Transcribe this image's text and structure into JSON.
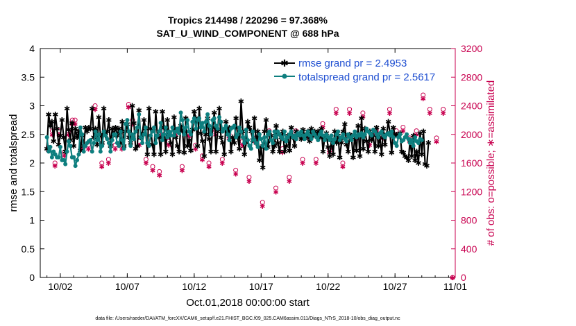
{
  "chart_data": {
    "type": "line",
    "title": "Tropics 214498 / 220296 = 97.368%",
    "subtitle": "SAT_U_WIND_COMPONENT @ 688 hPa",
    "xlabel": "Oct.01,2018 00:00:00 start",
    "ylabel": "rmse and totalspread",
    "y2label": "# of obs: o=possible; ∗=assimilated",
    "xlim": [
      0.5,
      31.5
    ],
    "ylim": [
      0,
      4
    ],
    "y2lim": [
      0,
      3200
    ],
    "x_ticks": [
      {
        "v": 2,
        "label": "10/02"
      },
      {
        "v": 7,
        "label": "10/07"
      },
      {
        "v": 12,
        "label": "10/12"
      },
      {
        "v": 17,
        "label": "10/17"
      },
      {
        "v": 22,
        "label": "10/22"
      },
      {
        "v": 27,
        "label": "10/27"
      },
      {
        "v": 32,
        "label": "11/01"
      }
    ],
    "y_ticks": [
      "0",
      "0.5",
      "1",
      "1.5",
      "2",
      "2.5",
      "3",
      "3.5",
      "4"
    ],
    "y2_ticks": [
      "0",
      "400",
      "800",
      "1200",
      "1600",
      "2000",
      "2400",
      "2800",
      "3200"
    ],
    "legend_position": "top-right",
    "series": [
      {
        "name": "rmse grand pr = 2.4953",
        "color": "#000000",
        "marker": "asterisk",
        "axis": "left",
        "values": [
          2.25,
          2.85,
          2.65,
          2.72,
          2.38,
          2.85,
          2.6,
          2.32,
          2.48,
          2.75,
          2.45,
          2.2,
          2.95,
          2.58,
          2.4,
          2.7,
          2.3,
          2.6,
          2.45,
          2.55,
          2.22,
          2.48,
          2.3,
          2.62,
          2.55,
          2.62,
          2.6,
          2.95,
          2.45,
          2.6,
          2.32,
          2.8,
          2.5,
          2.35,
          2.95,
          2.48,
          2.55,
          2.75,
          2.3,
          2.6,
          2.5,
          2.62,
          2.48,
          2.6,
          2.35,
          2.72,
          2.3,
          2.55,
          2.68,
          2.45,
          2.35,
          3.0,
          2.7,
          2.25,
          2.3,
          2.92,
          2.45,
          2.52,
          2.75,
          2.6,
          2.15,
          2.95,
          2.6,
          2.32,
          2.15,
          2.9,
          2.48,
          2.45,
          2.15,
          2.9,
          2.62,
          2.2,
          2.75,
          2.5,
          2.35,
          2.15,
          2.8,
          2.45,
          2.3,
          2.2,
          2.65,
          2.55,
          2.18,
          2.78,
          2.3,
          2.4,
          2.22,
          2.58,
          2.9,
          2.78,
          2.3,
          2.95,
          2.52,
          2.38,
          2.12,
          2.5,
          2.78,
          2.42,
          2.2,
          2.62,
          2.88,
          2.2,
          2.55,
          2.95,
          2.45,
          2.35,
          2.15,
          2.72,
          2.55,
          2.62,
          2.2,
          2.45,
          2.35,
          2.78,
          2.45,
          2.25,
          3.08,
          2.55,
          2.15,
          2.35,
          2.72,
          2.62,
          2.55,
          2.4,
          2.78,
          2.35,
          2.55,
          2.05,
          2.28,
          1.92,
          2.55,
          2.75,
          2.28,
          2.4,
          2.48,
          2.2,
          2.3,
          2.65,
          2.35,
          2.2,
          2.45,
          2.55,
          2.2,
          2.3,
          2.48,
          2.22,
          2.62,
          2.45,
          2.3,
          2.55,
          2.5,
          2.48,
          2.42,
          2.58,
          2.48,
          2.45,
          2.55,
          2.38,
          2.6,
          2.48,
          2.55,
          2.48,
          2.55,
          2.45,
          2.6,
          2.2,
          2.45,
          2.52,
          2.28,
          2.12,
          2.4,
          2.15,
          2.55,
          2.35,
          2.48,
          2.1,
          2.35,
          2.55,
          2.68,
          2.32,
          2.2,
          2.5,
          2.45,
          2.1,
          2.48,
          2.22,
          2.65,
          2.12,
          2.78,
          2.25,
          2.6,
          2.38,
          2.2,
          2.55,
          2.4,
          2.48,
          2.2,
          2.62,
          2.3,
          2.45,
          2.15,
          2.6,
          2.32,
          2.5,
          2.72,
          2.52,
          2.18,
          2.62,
          2.48,
          2.5,
          2.48,
          2.52,
          2.2,
          2.18,
          2.12,
          2.1,
          2.05,
          2.4,
          2.12,
          2.48,
          2.05,
          2.2,
          2.0,
          2.52,
          2.15,
          2.55,
          1.98,
          1.95,
          2.35
        ]
      },
      {
        "name": "totalspread grand pr = 2.5617",
        "color": "#0e7f7f",
        "marker": "circle",
        "axis": "left",
        "values": [
          2.45,
          2.2,
          2.28,
          2.1,
          2.2,
          2.15,
          2.1,
          2.1,
          2.28,
          2.05,
          2.05,
          1.98,
          2.2,
          2.38,
          2.3,
          2.1,
          2.1,
          1.95,
          2.05,
          2.15,
          2.62,
          2.5,
          2.2,
          2.3,
          2.35,
          2.38,
          2.4,
          2.2,
          2.35,
          2.55,
          2.4,
          2.5,
          2.2,
          2.3,
          2.55,
          2.48,
          2.42,
          2.35,
          2.2,
          2.4,
          2.5,
          2.5,
          2.35,
          2.3,
          2.55,
          2.4,
          2.25,
          2.68,
          2.75,
          2.55,
          2.3,
          2.5,
          2.42,
          2.55,
          2.62,
          2.85,
          2.45,
          2.35,
          2.5,
          2.62,
          2.35,
          2.3,
          2.48,
          2.55,
          2.62,
          2.35,
          2.48,
          2.55,
          2.7,
          2.4,
          2.5,
          2.62,
          2.45,
          2.55,
          2.48,
          2.62,
          2.48,
          2.55,
          2.6,
          2.52,
          2.88,
          2.75,
          2.5,
          2.62,
          2.75,
          2.55,
          2.5,
          2.72,
          2.78,
          2.6,
          2.75,
          2.78,
          2.62,
          2.7,
          2.55,
          2.72,
          2.85,
          2.65,
          2.5,
          2.75,
          2.78,
          2.65,
          2.6,
          2.8,
          2.72,
          2.55,
          2.6,
          2.65,
          2.5,
          2.4,
          2.6,
          2.62,
          2.65,
          2.45,
          2.5,
          2.62,
          2.55,
          2.45,
          2.35,
          2.58,
          2.4,
          2.3,
          2.25,
          2.55,
          2.4,
          2.35,
          2.28,
          2.5,
          2.42,
          2.3,
          2.45,
          2.25,
          2.5,
          2.55,
          2.4,
          2.35,
          2.55,
          2.45,
          2.55,
          2.5,
          2.45,
          2.42,
          2.55,
          2.38,
          2.45,
          2.5,
          2.55,
          2.45,
          2.48,
          2.42,
          2.52,
          2.48,
          2.55,
          2.48,
          2.42,
          2.5,
          2.55,
          2.48,
          2.42,
          2.55,
          2.5,
          2.45,
          2.4,
          2.5,
          2.55,
          2.48,
          2.4,
          2.5,
          2.45,
          2.4,
          2.48,
          2.35,
          2.42,
          2.5,
          2.55,
          2.4,
          2.45,
          2.5,
          2.42,
          2.38,
          2.5,
          2.45,
          2.4,
          2.48,
          2.55,
          2.45,
          2.5,
          2.48,
          2.52,
          2.45,
          2.5,
          2.6,
          2.55,
          2.52,
          2.48,
          2.58,
          2.55,
          2.5,
          2.45,
          2.52,
          2.55,
          2.48,
          2.45,
          2.5,
          2.52,
          2.48,
          2.55,
          2.45,
          2.35,
          2.3,
          2.45,
          2.5,
          2.38,
          2.4,
          2.45,
          2.5,
          2.42,
          2.35,
          2.4,
          2.3,
          2.45,
          2.38,
          2.35,
          2.42,
          2.4
        ]
      },
      {
        "name": "possible obs",
        "color": "#c8004f",
        "marker": "o",
        "axis": "right",
        "points": [
          [
            1.1,
            1820
          ],
          [
            1.4,
            2050
          ],
          [
            1.6,
            1600
          ],
          [
            1.9,
            2050
          ],
          [
            2.3,
            1750
          ],
          [
            2.6,
            2050
          ],
          [
            2.9,
            2200
          ],
          [
            3.1,
            2200
          ],
          [
            3.6,
            1850
          ],
          [
            4.1,
            1850
          ],
          [
            4.6,
            2400
          ],
          [
            5.1,
            1600
          ],
          [
            5.6,
            1650
          ],
          [
            6.1,
            1850
          ],
          [
            6.6,
            1850
          ],
          [
            7.1,
            2420
          ],
          [
            7.4,
            2200
          ],
          [
            7.9,
            1900
          ],
          [
            8.4,
            1650
          ],
          [
            8.9,
            1550
          ],
          [
            9.4,
            1480
          ],
          [
            9.6,
            2050
          ],
          [
            10.1,
            1900
          ],
          [
            10.6,
            2050
          ],
          [
            11.1,
            1550
          ],
          [
            11.6,
            2020
          ],
          [
            12.1,
            1850
          ],
          [
            12.6,
            1700
          ],
          [
            13.1,
            1600
          ],
          [
            13.6,
            2050
          ],
          [
            14.1,
            1650
          ],
          [
            14.6,
            2000
          ],
          [
            15.1,
            1500
          ],
          [
            15.6,
            1900
          ],
          [
            16.1,
            1400
          ],
          [
            16.6,
            1950
          ],
          [
            17.1,
            1050
          ],
          [
            17.6,
            2050
          ],
          [
            18.1,
            1250
          ],
          [
            18.6,
            1800
          ],
          [
            19.1,
            1400
          ],
          [
            19.6,
            2050
          ],
          [
            20.1,
            1650
          ],
          [
            20.6,
            2000
          ],
          [
            21.1,
            1650
          ],
          [
            21.6,
            2150
          ],
          [
            22.1,
            1800
          ],
          [
            22.6,
            2350
          ],
          [
            23.1,
            1600
          ],
          [
            23.6,
            2350
          ],
          [
            24.1,
            2000
          ],
          [
            24.6,
            2300
          ],
          [
            25.1,
            1900
          ],
          [
            25.6,
            2050
          ],
          [
            26.1,
            2000
          ],
          [
            26.6,
            2350
          ],
          [
            27.1,
            2050
          ],
          [
            27.6,
            2100
          ],
          [
            28.1,
            1950
          ],
          [
            28.6,
            2050
          ],
          [
            29.1,
            2550
          ],
          [
            29.6,
            2350
          ],
          [
            30.1,
            1950
          ],
          [
            30.6,
            2350
          ],
          [
            31.3,
            0
          ]
        ]
      },
      {
        "name": "assimilated obs",
        "color": "#c8004f",
        "marker": "asterisk",
        "axis": "right",
        "points": [
          [
            1.1,
            1780
          ],
          [
            1.4,
            2000
          ],
          [
            1.6,
            1560
          ],
          [
            1.9,
            2000
          ],
          [
            2.3,
            1700
          ],
          [
            2.6,
            2000
          ],
          [
            2.9,
            2150
          ],
          [
            3.1,
            2150
          ],
          [
            3.6,
            1800
          ],
          [
            4.1,
            1800
          ],
          [
            4.6,
            2350
          ],
          [
            5.1,
            1550
          ],
          [
            5.6,
            1600
          ],
          [
            6.1,
            1800
          ],
          [
            6.6,
            1800
          ],
          [
            7.1,
            2380
          ],
          [
            7.4,
            2150
          ],
          [
            7.9,
            1850
          ],
          [
            8.4,
            1600
          ],
          [
            8.9,
            1500
          ],
          [
            9.4,
            1430
          ],
          [
            9.6,
            2000
          ],
          [
            10.1,
            1850
          ],
          [
            10.6,
            2000
          ],
          [
            11.1,
            1500
          ],
          [
            11.6,
            1980
          ],
          [
            12.1,
            1800
          ],
          [
            12.6,
            1650
          ],
          [
            13.1,
            1550
          ],
          [
            13.6,
            2000
          ],
          [
            14.1,
            1600
          ],
          [
            14.6,
            1950
          ],
          [
            15.1,
            1450
          ],
          [
            15.6,
            1850
          ],
          [
            16.1,
            1350
          ],
          [
            16.6,
            1900
          ],
          [
            17.1,
            1000
          ],
          [
            17.6,
            2000
          ],
          [
            18.1,
            1200
          ],
          [
            18.6,
            1750
          ],
          [
            19.1,
            1350
          ],
          [
            19.6,
            2000
          ],
          [
            20.1,
            1600
          ],
          [
            20.6,
            1950
          ],
          [
            21.1,
            1600
          ],
          [
            21.6,
            2100
          ],
          [
            22.1,
            1750
          ],
          [
            22.6,
            2300
          ],
          [
            23.1,
            1550
          ],
          [
            23.6,
            2300
          ],
          [
            24.1,
            1950
          ],
          [
            24.6,
            2250
          ],
          [
            25.1,
            1850
          ],
          [
            25.6,
            2000
          ],
          [
            26.1,
            1950
          ],
          [
            26.6,
            2300
          ],
          [
            27.1,
            2000
          ],
          [
            27.6,
            2050
          ],
          [
            28.1,
            1900
          ],
          [
            28.6,
            2000
          ],
          [
            29.1,
            2500
          ],
          [
            29.6,
            2300
          ],
          [
            30.1,
            1900
          ],
          [
            30.6,
            2300
          ],
          [
            31.3,
            0
          ]
        ]
      }
    ]
  },
  "footer": "data file: /Users/raeder/DAI/ATM_forcXX/CAM6_setup/f.e21.FHIST_BGC.f09_025.CAM6assim.011/Diags_NTrS_2018-10/obs_diag_output.nc"
}
